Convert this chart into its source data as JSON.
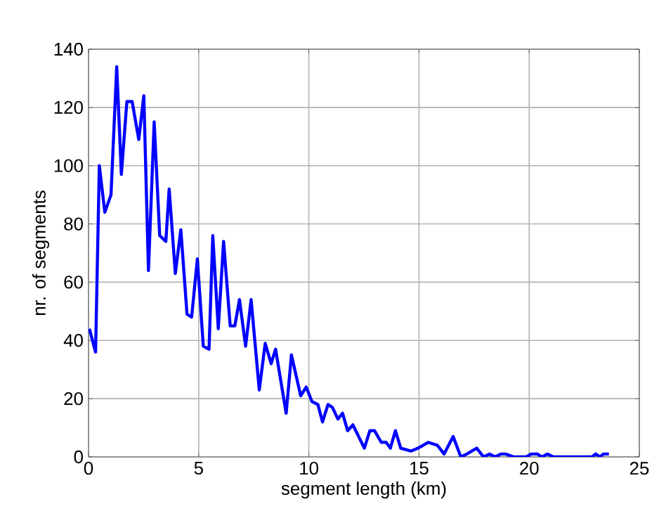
{
  "chart_data": {
    "type": "line",
    "xlabel": "segment length (km)",
    "ylabel": "nr. of segments",
    "xlim": [
      0,
      25
    ],
    "xticks": [
      0,
      5,
      10,
      15,
      20,
      25
    ],
    "ylim": [
      0,
      140
    ],
    "yticks": [
      0,
      20,
      40,
      60,
      80,
      100,
      120,
      140
    ],
    "grid": true,
    "marker": "none",
    "line_style": "solid",
    "x": [
      0.04,
      0.32,
      0.49,
      0.74,
      1.02,
      1.28,
      1.49,
      1.74,
      1.98,
      2.28,
      2.51,
      2.72,
      2.98,
      3.23,
      3.51,
      3.66,
      3.94,
      4.19,
      4.47,
      4.68,
      4.94,
      5.21,
      5.47,
      5.64,
      5.89,
      6.13,
      6.43,
      6.64,
      6.85,
      7.13,
      7.38,
      7.75,
      8.02,
      8.29,
      8.49,
      8.97,
      9.21,
      9.63,
      9.88,
      10.14,
      10.41,
      10.62,
      10.87,
      11.07,
      11.32,
      11.53,
      11.76,
      12.0,
      12.52,
      12.77,
      12.98,
      13.29,
      13.51,
      13.7,
      13.93,
      14.17,
      14.63,
      14.96,
      15.41,
      15.83,
      16.14,
      16.55,
      16.9,
      17.17,
      17.62,
      17.93,
      18.2,
      18.45,
      18.72,
      18.93,
      19.3,
      19.86,
      20.1,
      20.37,
      20.58,
      20.83,
      21.1,
      22.85,
      23.02,
      23.22,
      23.37,
      23.62
    ],
    "series": [
      {
        "color": "#0000ff",
        "values": [
          44,
          36,
          100,
          84,
          90,
          134,
          97,
          122,
          122,
          109,
          124,
          64,
          115,
          76,
          74,
          92,
          63,
          78,
          49,
          48,
          68,
          38,
          37,
          76,
          44,
          74,
          45,
          45,
          54,
          38,
          54,
          23,
          39,
          32,
          37,
          15,
          35,
          21,
          24,
          19,
          18,
          12,
          18,
          17,
          13,
          15,
          9,
          11,
          3,
          9,
          9,
          5,
          5,
          3,
          9,
          3,
          2,
          3,
          5,
          4,
          1,
          7,
          0,
          1,
          3,
          0,
          1,
          0,
          1,
          1,
          0,
          0,
          1,
          1,
          0,
          1,
          0,
          0,
          1,
          0,
          1,
          1
        ]
      }
    ]
  }
}
